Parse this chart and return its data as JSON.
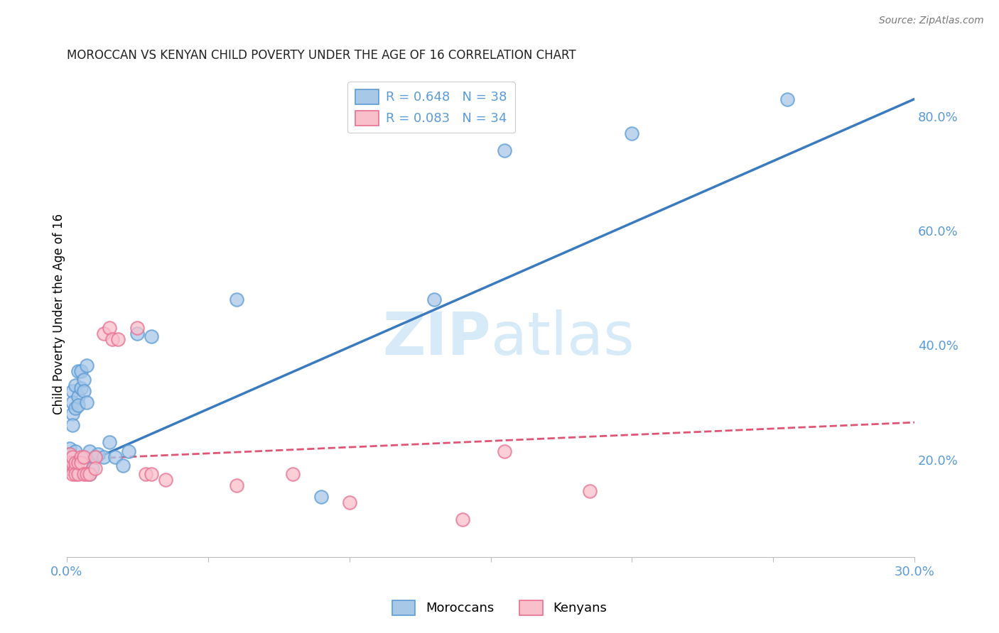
{
  "title": "MOROCCAN VS KENYAN CHILD POVERTY UNDER THE AGE OF 16 CORRELATION CHART",
  "source": "Source: ZipAtlas.com",
  "ylabel": "Child Poverty Under the Age of 16",
  "xlim": [
    0.0,
    0.3
  ],
  "ylim": [
    0.03,
    0.88
  ],
  "right_yticks": [
    0.2,
    0.4,
    0.6,
    0.8
  ],
  "right_yticklabels": [
    "20.0%",
    "40.0%",
    "60.0%",
    "80.0%"
  ],
  "moroccan_color": "#a8c8e8",
  "moroccan_edge_color": "#5b9bd5",
  "kenyan_color": "#f9c0cc",
  "kenyan_edge_color": "#e87090",
  "moroccan_line_color": "#3a7abf",
  "kenyan_line_color": "#e05575",
  "watermark_color": "#d6eaf8",
  "background_color": "#ffffff",
  "grid_color": "#cccccc",
  "tick_color": "#5b9bd5",
  "moroccan_x": [
    0.0005,
    0.001,
    0.001,
    0.001,
    0.002,
    0.002,
    0.002,
    0.002,
    0.003,
    0.003,
    0.003,
    0.004,
    0.004,
    0.004,
    0.005,
    0.005,
    0.006,
    0.006,
    0.007,
    0.007,
    0.008,
    0.008,
    0.009,
    0.01,
    0.011,
    0.013,
    0.015,
    0.017,
    0.02,
    0.022,
    0.025,
    0.03,
    0.06,
    0.09,
    0.155,
    0.2,
    0.255,
    0.13
  ],
  "moroccan_y": [
    0.195,
    0.22,
    0.185,
    0.21,
    0.28,
    0.32,
    0.26,
    0.3,
    0.33,
    0.29,
    0.215,
    0.31,
    0.355,
    0.295,
    0.355,
    0.325,
    0.34,
    0.32,
    0.365,
    0.3,
    0.175,
    0.215,
    0.185,
    0.205,
    0.21,
    0.205,
    0.23,
    0.205,
    0.19,
    0.215,
    0.42,
    0.415,
    0.48,
    0.135,
    0.74,
    0.77,
    0.83,
    0.48
  ],
  "kenyan_x": [
    0.0005,
    0.001,
    0.001,
    0.001,
    0.002,
    0.002,
    0.002,
    0.003,
    0.003,
    0.003,
    0.004,
    0.004,
    0.005,
    0.005,
    0.006,
    0.006,
    0.007,
    0.008,
    0.01,
    0.01,
    0.013,
    0.015,
    0.016,
    0.018,
    0.025,
    0.028,
    0.03,
    0.035,
    0.06,
    0.08,
    0.1,
    0.155,
    0.185,
    0.14
  ],
  "kenyan_y": [
    0.195,
    0.21,
    0.185,
    0.195,
    0.175,
    0.195,
    0.205,
    0.185,
    0.195,
    0.175,
    0.175,
    0.195,
    0.205,
    0.195,
    0.175,
    0.205,
    0.175,
    0.175,
    0.205,
    0.185,
    0.42,
    0.43,
    0.41,
    0.41,
    0.43,
    0.175,
    0.175,
    0.165,
    0.155,
    0.175,
    0.125,
    0.215,
    0.145,
    0.095
  ],
  "moroccan_line_x": [
    0.0,
    0.3
  ],
  "moroccan_line_y": [
    0.18,
    0.83
  ],
  "kenyan_line_x": [
    0.0,
    0.3
  ],
  "kenyan_line_y": [
    0.2,
    0.265
  ]
}
